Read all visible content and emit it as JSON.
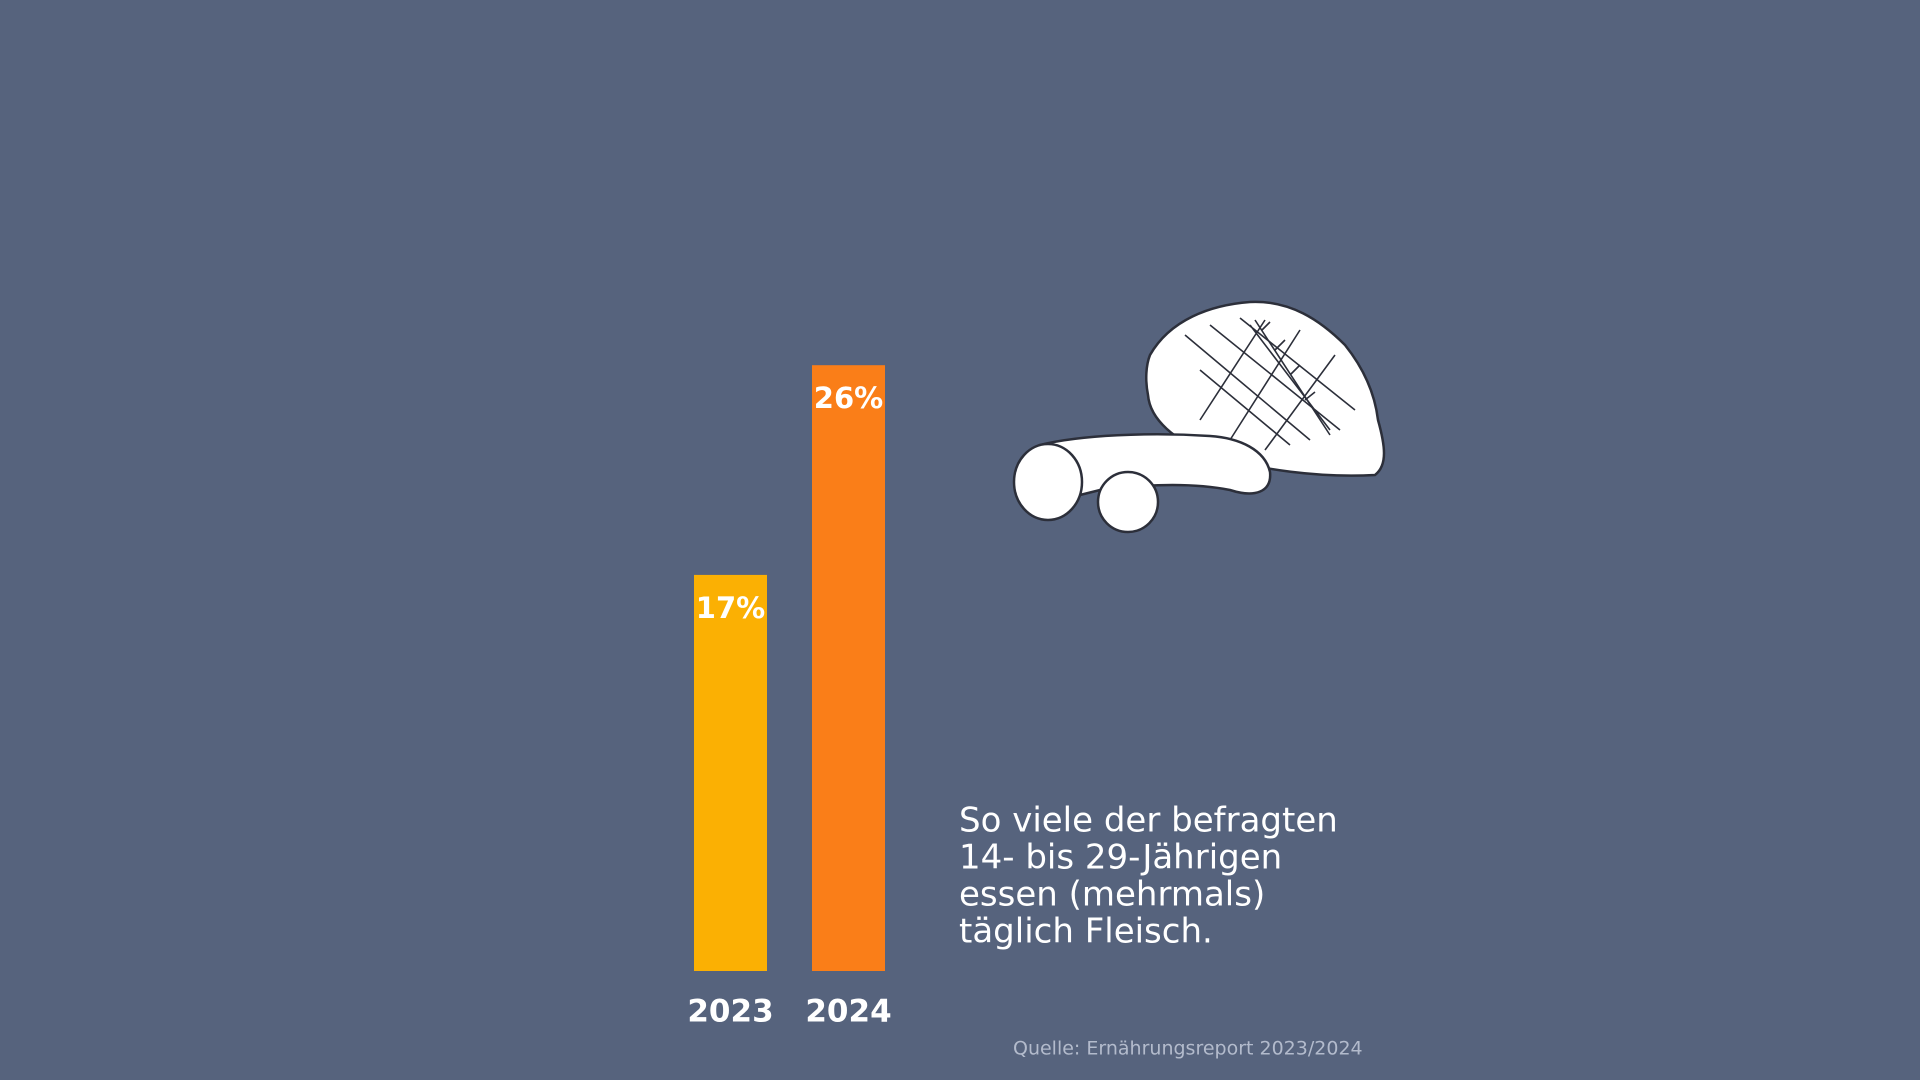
{
  "chart_data": {
    "type": "bar",
    "categories": [
      "2023",
      "2024"
    ],
    "values": [
      17,
      26
    ],
    "value_labels": [
      "17%",
      "26%"
    ],
    "colors": [
      "#fbb003",
      "#fa7e18"
    ],
    "annotation": [
      "So viele der befragten",
      "14- bis 29-Jährigen",
      "essen (mehrmals)",
      "täglich Fleisch."
    ],
    "source": "Quelle: Ernährungsreport 2023/2024"
  }
}
